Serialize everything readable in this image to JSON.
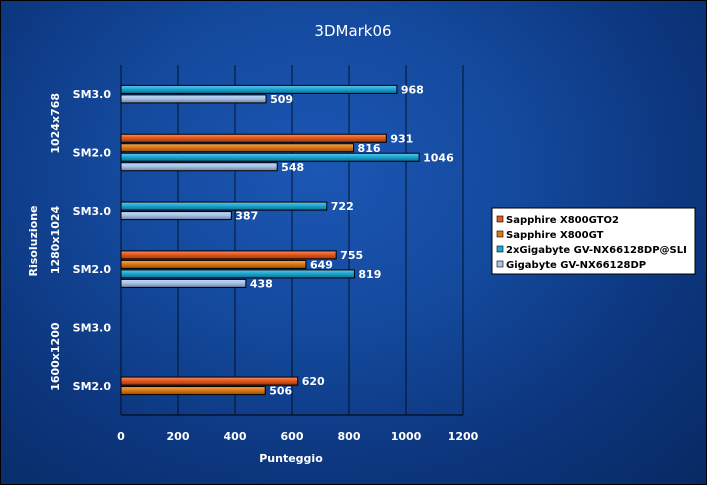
{
  "chart_data": {
    "type": "bar",
    "orientation": "horizontal",
    "title": "3DMark06",
    "xlabel": "Punteggio",
    "ylabel": "Risoluzione",
    "xlim": [
      0,
      1200
    ],
    "xticks": [
      0,
      200,
      400,
      600,
      800,
      1000,
      1200
    ],
    "grid": true,
    "legend_position": "right",
    "colors": {
      "Sapphire X800GTO2": "#e8571a",
      "Sapphire X800GT": "#e07a10",
      "2xGigabyte GV-NX66128DP@SLI": "#1aa8d4",
      "Gigabyte GV-NX66128DP": "#a8c4ec"
    },
    "groups": [
      {
        "resolution": "1024x768",
        "categories": [
          {
            "label": "SM3.0",
            "bars": [
              {
                "series": "2xGigabyte GV-NX66128DP@SLI",
                "value": 968
              },
              {
                "series": "Gigabyte GV-NX66128DP",
                "value": 509
              }
            ]
          },
          {
            "label": "SM2.0",
            "bars": [
              {
                "series": "Sapphire X800GTO2",
                "value": 931
              },
              {
                "series": "Sapphire X800GT",
                "value": 816
              },
              {
                "series": "2xGigabyte GV-NX66128DP@SLI",
                "value": 1046
              },
              {
                "series": "Gigabyte GV-NX66128DP",
                "value": 548
              }
            ]
          }
        ]
      },
      {
        "resolution": "1280x1024",
        "categories": [
          {
            "label": "SM3.0",
            "bars": [
              {
                "series": "2xGigabyte GV-NX66128DP@SLI",
                "value": 722
              },
              {
                "series": "Gigabyte GV-NX66128DP",
                "value": 387
              }
            ]
          },
          {
            "label": "SM2.0",
            "bars": [
              {
                "series": "Sapphire X800GTO2",
                "value": 755
              },
              {
                "series": "Sapphire X800GT",
                "value": 649
              },
              {
                "series": "2xGigabyte GV-NX66128DP@SLI",
                "value": 819
              },
              {
                "series": "Gigabyte GV-NX66128DP",
                "value": 438
              }
            ]
          }
        ]
      },
      {
        "resolution": "1600x1200",
        "categories": [
          {
            "label": "SM3.0",
            "bars": []
          },
          {
            "label": "SM2.0",
            "bars": [
              {
                "series": "Sapphire X800GTO2",
                "value": 620
              },
              {
                "series": "Sapphire X800GT",
                "value": 506
              }
            ]
          }
        ]
      }
    ],
    "legend": [
      "Sapphire X800GTO2",
      "Sapphire X800GT",
      "2xGigabyte GV-NX66128DP@SLI",
      "Gigabyte GV-NX66128DP"
    ]
  }
}
